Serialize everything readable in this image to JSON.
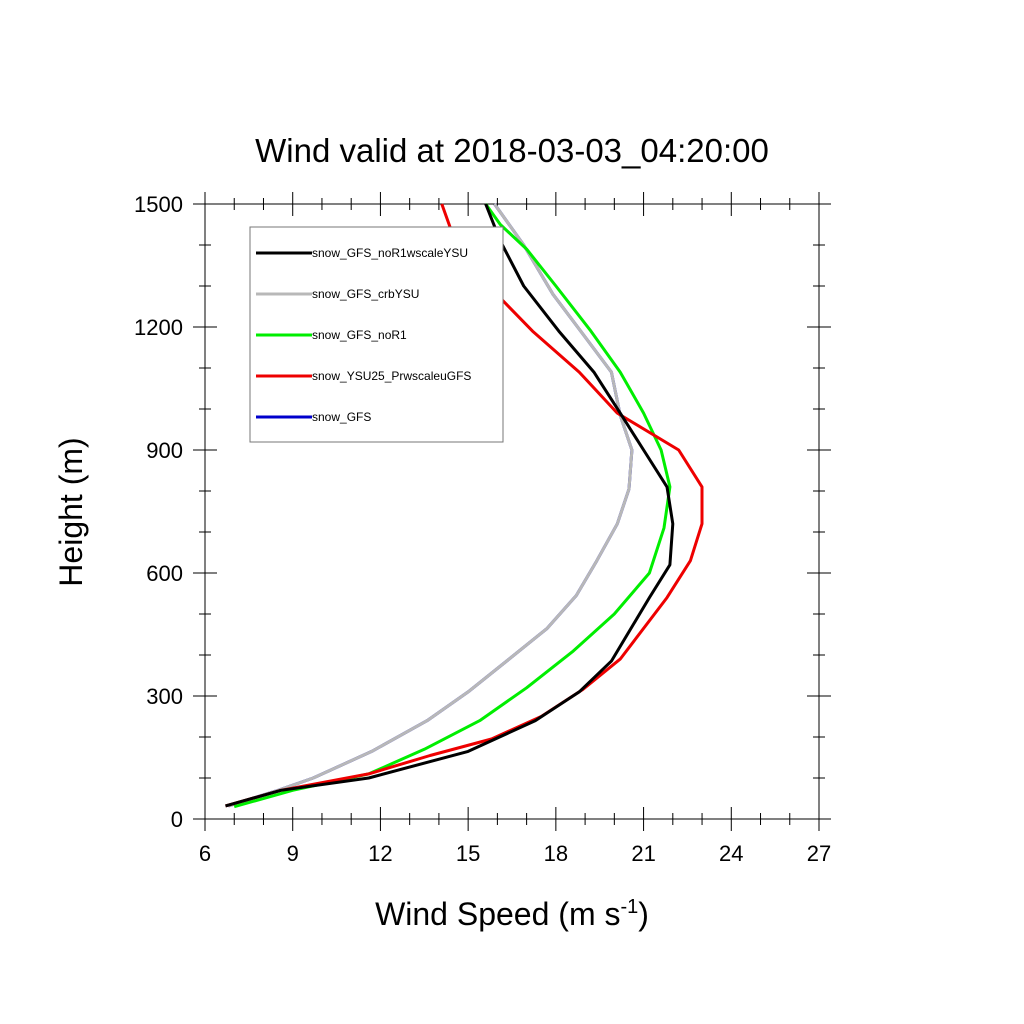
{
  "chart_data": {
    "type": "line",
    "title": "Wind valid at 2018-03-03_04:20:00",
    "xlabel": "Wind Speed (m s",
    "xlabel_superscript": "-1",
    "xlabel_suffix": ")",
    "ylabel": "Height (m)",
    "xlim": [
      6,
      27
    ],
    "ylim": [
      0,
      1500
    ],
    "x_ticks": [
      6,
      9,
      12,
      15,
      18,
      21,
      24,
      27
    ],
    "y_ticks": [
      0,
      300,
      600,
      900,
      1200,
      1500
    ],
    "grid": false,
    "legend_position": "top-left",
    "series": [
      {
        "name": "snow_GFS",
        "color": "#0000cc",
        "x": [
          6.8,
          8.5,
          9.7,
          11.7,
          13.6,
          15.0,
          16.4,
          17.7,
          18.7,
          19.4,
          20.1,
          20.5,
          20.6,
          20.2,
          19.9,
          18.9,
          17.9,
          16.9,
          15.9
        ],
        "y": [
          32,
          70,
          100,
          165,
          240,
          310,
          390,
          465,
          545,
          630,
          720,
          805,
          900,
          985,
          1090,
          1185,
          1280,
          1400,
          1500
        ]
      },
      {
        "name": "snow_GFS_crbYSU",
        "color": "#b8b8b8",
        "x": [
          6.8,
          8.5,
          9.7,
          11.7,
          13.6,
          15.0,
          16.4,
          17.7,
          18.7,
          19.4,
          20.1,
          20.5,
          20.6,
          20.2,
          19.9,
          18.9,
          17.9,
          16.9,
          15.9
        ],
        "y": [
          32,
          70,
          100,
          165,
          240,
          310,
          390,
          465,
          545,
          630,
          720,
          805,
          900,
          985,
          1090,
          1185,
          1280,
          1400,
          1500
        ]
      },
      {
        "name": "snow_GFS_noR1",
        "color": "#00ee00",
        "x": [
          7.0,
          9.0,
          11.6,
          13.5,
          15.4,
          17.0,
          18.6,
          20.0,
          21.2,
          21.7,
          21.9,
          21.6,
          21.0,
          20.2,
          19.2,
          18.0,
          17.0,
          16.1,
          15.6
        ],
        "y": [
          30,
          70,
          110,
          170,
          240,
          320,
          410,
          500,
          600,
          710,
          810,
          900,
          990,
          1090,
          1190,
          1300,
          1390,
          1450,
          1500
        ]
      },
      {
        "name": "snow_YSU25_PrwscaleuGFS",
        "color": "#ee0000",
        "x": [
          6.7,
          8.6,
          11.6,
          13.7,
          15.8,
          17.5,
          18.9,
          20.2,
          21.8,
          22.6,
          23.0,
          23.0,
          22.2,
          20.1,
          18.8,
          17.2,
          15.7,
          14.5,
          14.1
        ],
        "y": [
          32,
          70,
          110,
          155,
          195,
          250,
          315,
          390,
          540,
          630,
          720,
          810,
          900,
          990,
          1090,
          1190,
          1300,
          1420,
          1500
        ]
      },
      {
        "name": "snow_GFS_noR1wscaleYSU",
        "color": "#000000",
        "x": [
          6.7,
          8.6,
          11.6,
          15.0,
          17.3,
          18.8,
          19.9,
          21.2,
          21.9,
          22.0,
          21.8,
          21.0,
          20.2,
          19.3,
          18.1,
          16.9,
          16.1,
          15.6
        ],
        "y": [
          32,
          70,
          100,
          165,
          240,
          310,
          385,
          540,
          620,
          720,
          810,
          900,
          990,
          1090,
          1190,
          1300,
          1410,
          1500
        ]
      }
    ],
    "legend_order": [
      "snow_GFS_noR1wscaleYSU",
      "snow_GFS_crbYSU",
      "snow_GFS_noR1",
      "snow_YSU25_PrwscaleuGFS",
      "snow_GFS"
    ]
  }
}
